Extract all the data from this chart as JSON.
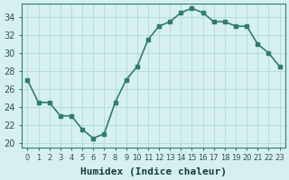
{
  "x": [
    0,
    1,
    2,
    3,
    4,
    5,
    6,
    7,
    8,
    9,
    10,
    11,
    12,
    13,
    14,
    15,
    16,
    17,
    18,
    19,
    20,
    21,
    22,
    23
  ],
  "y": [
    27,
    24.5,
    24.5,
    23,
    23,
    21.5,
    20.5,
    21,
    24.5,
    27,
    28.5,
    31.5,
    33,
    33.5,
    34.5,
    35,
    34.5,
    33.5,
    33.5,
    33,
    33,
    31,
    30,
    28.5
  ],
  "line_color": "#2e7d6e",
  "marker": "s",
  "marker_size": 3,
  "linewidth": 1.2,
  "background_color": "#d6f0f0",
  "grid_color": "#aad4d4",
  "xlabel": "Humidex (Indice chaleur)",
  "xlabel_fontsize": 8,
  "ylabel_ticks": [
    20,
    22,
    24,
    26,
    28,
    30,
    32,
    34
  ],
  "ylim": [
    19.5,
    35.5
  ],
  "xlim": [
    -0.5,
    23.5
  ],
  "tick_fontsize": 7,
  "xtick_labels": [
    "0",
    "1",
    "2",
    "3",
    "4",
    "5",
    "6",
    "7",
    "8",
    "9",
    "10",
    "11",
    "12",
    "13",
    "14",
    "15",
    "16",
    "17",
    "18",
    "19",
    "20",
    "21",
    "22",
    "23"
  ],
  "tick_color": "#2e5050",
  "spine_color": "#2e7d6e",
  "xlabel_color": "#1a3a3a"
}
